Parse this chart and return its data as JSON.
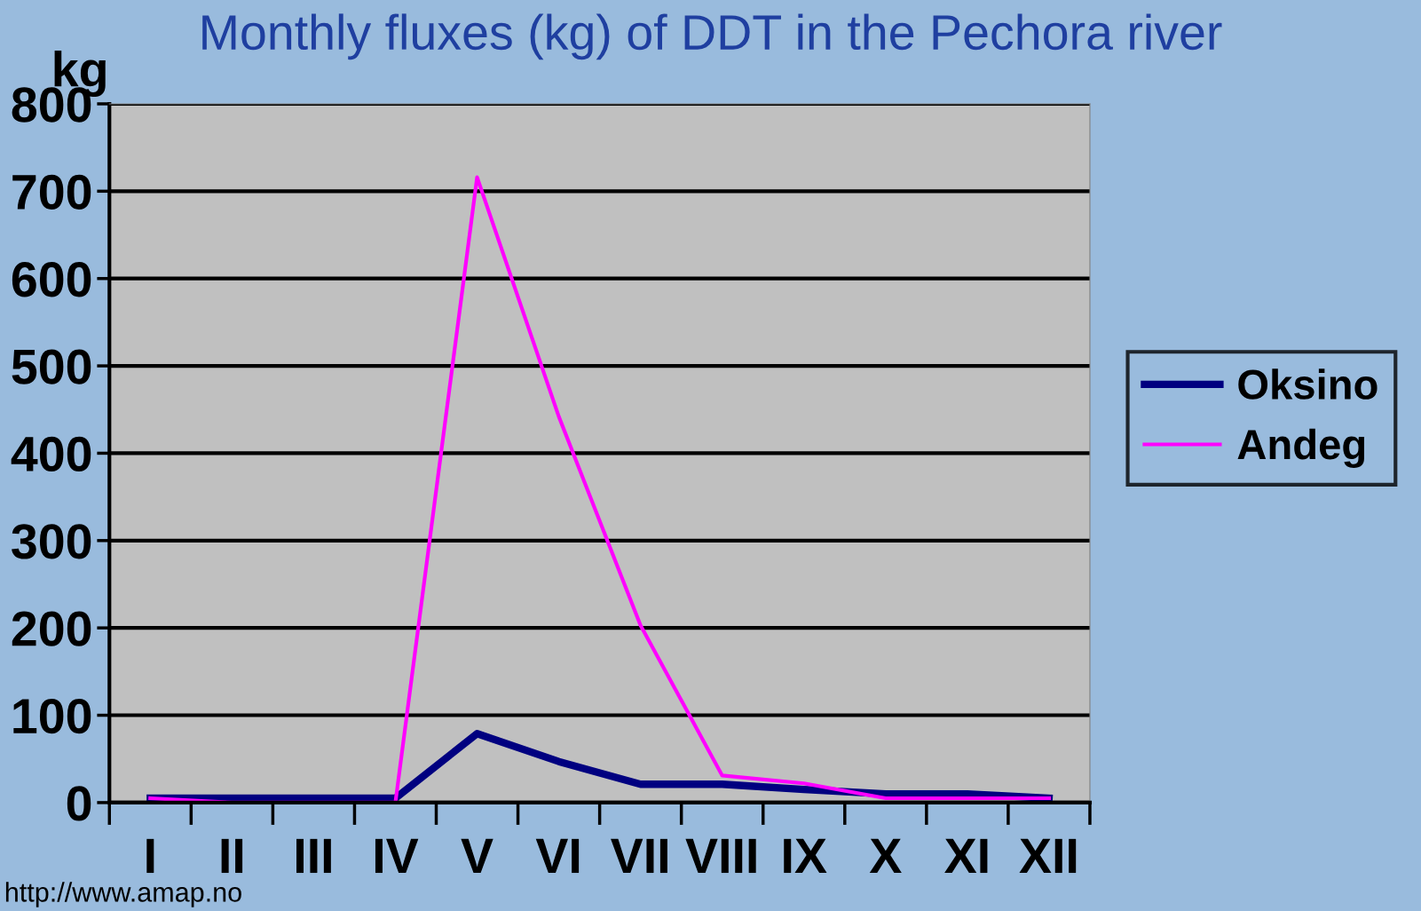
{
  "chart_data": {
    "type": "line",
    "title": "Monthly fluxes (kg) of DDT in the Pechora river",
    "ylabel": "kg",
    "categories": [
      "I",
      "II",
      "III",
      "IV",
      "V",
      "VI",
      "VII",
      "VIII",
      "IX",
      "X",
      "XI",
      "XII"
    ],
    "series": [
      {
        "name": "Oksino",
        "color": "#000080",
        "values": [
          5,
          5,
          5,
          5,
          79,
          47,
          21,
          21,
          15,
          10,
          10,
          5
        ]
      },
      {
        "name": "Andeg",
        "color": "#ff00ff",
        "values": [
          5,
          0,
          0,
          0,
          716,
          442,
          203,
          31,
          22,
          5,
          5,
          5
        ]
      }
    ],
    "ylim": [
      0,
      800
    ],
    "yticks": [
      0,
      100,
      200,
      300,
      400,
      500,
      600,
      700,
      800
    ],
    "grid": "y",
    "legend": "right",
    "marker": "none",
    "line_style": "solid",
    "annotations": [
      "http://www.amap.no"
    ]
  }
}
